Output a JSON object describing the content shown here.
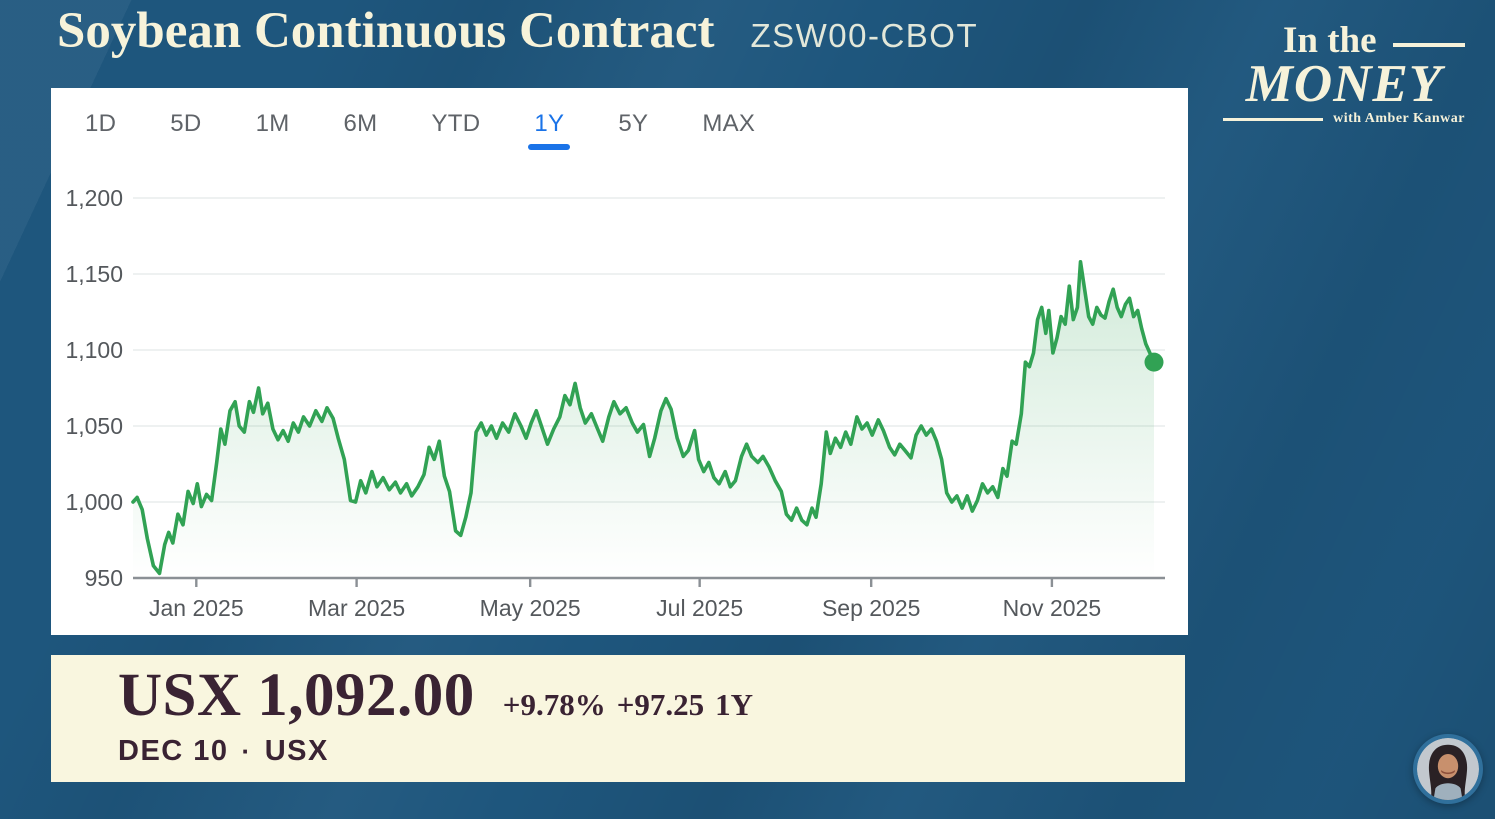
{
  "header": {
    "title": "Soybean Continuous Contract",
    "ticker": "ZSW00-CBOT"
  },
  "logo": {
    "line1": "In the",
    "line2": "MONEY",
    "line3": "with Amber Kanwar"
  },
  "chart": {
    "range_tabs": [
      {
        "label": "1D",
        "active": false
      },
      {
        "label": "5D",
        "active": false
      },
      {
        "label": "1M",
        "active": false
      },
      {
        "label": "6M",
        "active": false
      },
      {
        "label": "YTD",
        "active": false
      },
      {
        "label": "1Y",
        "active": true
      },
      {
        "label": "5Y",
        "active": false
      },
      {
        "label": "MAX",
        "active": false
      }
    ],
    "active_tab_color": "#1a73e8",
    "inactive_tab_color": "#5f6368"
  },
  "quote": {
    "price": "USX 1,092.00",
    "change_percent": "+9.78%",
    "change_amount": "+97.25",
    "change_period": "1Y",
    "date": "DEC 10",
    "separator": "·",
    "exchange": "USX",
    "panel_color": "#f9f6df",
    "text_color": "#3a2333"
  },
  "chart_data": {
    "type": "area",
    "title": "Soybean Continuous Contract",
    "symbol": "ZSW00-CBOT",
    "selected_range": "1Y",
    "last_price": 1092.0,
    "change_percent": 9.78,
    "change_amount": 97.25,
    "line_color": "#31a254",
    "grid": true,
    "ylim": [
      945,
      1210
    ],
    "yticks": [
      {
        "value": 1200,
        "label": "1,200"
      },
      {
        "value": 1150,
        "label": "1,150"
      },
      {
        "value": 1100,
        "label": "1,100"
      },
      {
        "value": 1050,
        "label": "1,050"
      },
      {
        "value": 1000,
        "label": "1,000"
      },
      {
        "value": 950,
        "label": "950"
      }
    ],
    "xticks": [
      {
        "pos": 0.062,
        "label": "Jan 2025"
      },
      {
        "pos": 0.219,
        "label": "Mar 2025"
      },
      {
        "pos": 0.389,
        "label": "May 2025"
      },
      {
        "pos": 0.555,
        "label": "Jul 2025"
      },
      {
        "pos": 0.723,
        "label": "Sep 2025"
      },
      {
        "pos": 0.9,
        "label": "Nov 2025"
      }
    ],
    "series": [
      {
        "name": "ZSW00-CBOT 1Y price (USX)",
        "points": [
          [
            0.0,
            1000
          ],
          [
            0.004,
            1003
          ],
          [
            0.009,
            995
          ],
          [
            0.014,
            976
          ],
          [
            0.02,
            958
          ],
          [
            0.026,
            953
          ],
          [
            0.031,
            972
          ],
          [
            0.035,
            980
          ],
          [
            0.039,
            973
          ],
          [
            0.044,
            992
          ],
          [
            0.049,
            985
          ],
          [
            0.054,
            1007
          ],
          [
            0.059,
            999
          ],
          [
            0.063,
            1012
          ],
          [
            0.067,
            997
          ],
          [
            0.072,
            1005
          ],
          [
            0.077,
            1001
          ],
          [
            0.082,
            1026
          ],
          [
            0.086,
            1048
          ],
          [
            0.09,
            1038
          ],
          [
            0.095,
            1060
          ],
          [
            0.1,
            1066
          ],
          [
            0.104,
            1050
          ],
          [
            0.109,
            1046
          ],
          [
            0.114,
            1066
          ],
          [
            0.118,
            1059
          ],
          [
            0.123,
            1075
          ],
          [
            0.127,
            1058
          ],
          [
            0.132,
            1065
          ],
          [
            0.137,
            1048
          ],
          [
            0.142,
            1041
          ],
          [
            0.147,
            1047
          ],
          [
            0.152,
            1040
          ],
          [
            0.157,
            1052
          ],
          [
            0.162,
            1046
          ],
          [
            0.167,
            1056
          ],
          [
            0.173,
            1050
          ],
          [
            0.179,
            1060
          ],
          [
            0.185,
            1053
          ],
          [
            0.19,
            1062
          ],
          [
            0.196,
            1055
          ],
          [
            0.201,
            1042
          ],
          [
            0.207,
            1028
          ],
          [
            0.213,
            1001
          ],
          [
            0.218,
            1000
          ],
          [
            0.223,
            1014
          ],
          [
            0.228,
            1006
          ],
          [
            0.234,
            1020
          ],
          [
            0.239,
            1010
          ],
          [
            0.245,
            1016
          ],
          [
            0.251,
            1008
          ],
          [
            0.257,
            1013
          ],
          [
            0.262,
            1006
          ],
          [
            0.268,
            1012
          ],
          [
            0.273,
            1004
          ],
          [
            0.279,
            1010
          ],
          [
            0.285,
            1018
          ],
          [
            0.29,
            1036
          ],
          [
            0.295,
            1028
          ],
          [
            0.3,
            1040
          ],
          [
            0.305,
            1017
          ],
          [
            0.31,
            1007
          ],
          [
            0.316,
            981
          ],
          [
            0.321,
            978
          ],
          [
            0.326,
            990
          ],
          [
            0.331,
            1006
          ],
          [
            0.336,
            1046
          ],
          [
            0.341,
            1052
          ],
          [
            0.346,
            1044
          ],
          [
            0.351,
            1050
          ],
          [
            0.356,
            1042
          ],
          [
            0.362,
            1052
          ],
          [
            0.368,
            1046
          ],
          [
            0.374,
            1058
          ],
          [
            0.38,
            1050
          ],
          [
            0.385,
            1042
          ],
          [
            0.39,
            1052
          ],
          [
            0.395,
            1060
          ],
          [
            0.4,
            1050
          ],
          [
            0.406,
            1038
          ],
          [
            0.412,
            1048
          ],
          [
            0.418,
            1056
          ],
          [
            0.423,
            1070
          ],
          [
            0.428,
            1064
          ],
          [
            0.433,
            1078
          ],
          [
            0.438,
            1062
          ],
          [
            0.443,
            1052
          ],
          [
            0.449,
            1058
          ],
          [
            0.455,
            1048
          ],
          [
            0.46,
            1040
          ],
          [
            0.466,
            1056
          ],
          [
            0.471,
            1066
          ],
          [
            0.477,
            1058
          ],
          [
            0.483,
            1062
          ],
          [
            0.489,
            1052
          ],
          [
            0.494,
            1046
          ],
          [
            0.5,
            1051
          ],
          [
            0.506,
            1030
          ],
          [
            0.511,
            1042
          ],
          [
            0.517,
            1060
          ],
          [
            0.522,
            1068
          ],
          [
            0.527,
            1061
          ],
          [
            0.533,
            1042
          ],
          [
            0.539,
            1030
          ],
          [
            0.544,
            1034
          ],
          [
            0.55,
            1047
          ],
          [
            0.554,
            1028
          ],
          [
            0.559,
            1020
          ],
          [
            0.564,
            1026
          ],
          [
            0.569,
            1016
          ],
          [
            0.574,
            1012
          ],
          [
            0.58,
            1020
          ],
          [
            0.585,
            1010
          ],
          [
            0.59,
            1014
          ],
          [
            0.596,
            1030
          ],
          [
            0.601,
            1038
          ],
          [
            0.606,
            1030
          ],
          [
            0.612,
            1026
          ],
          [
            0.617,
            1030
          ],
          [
            0.623,
            1023
          ],
          [
            0.629,
            1014
          ],
          [
            0.635,
            1007
          ],
          [
            0.64,
            992
          ],
          [
            0.645,
            988
          ],
          [
            0.65,
            996
          ],
          [
            0.655,
            988
          ],
          [
            0.66,
            985
          ],
          [
            0.665,
            996
          ],
          [
            0.669,
            990
          ],
          [
            0.674,
            1012
          ],
          [
            0.679,
            1046
          ],
          [
            0.683,
            1032
          ],
          [
            0.688,
            1042
          ],
          [
            0.693,
            1036
          ],
          [
            0.698,
            1046
          ],
          [
            0.703,
            1038
          ],
          [
            0.709,
            1056
          ],
          [
            0.714,
            1048
          ],
          [
            0.719,
            1052
          ],
          [
            0.724,
            1044
          ],
          [
            0.73,
            1054
          ],
          [
            0.735,
            1047
          ],
          [
            0.741,
            1036
          ],
          [
            0.746,
            1031
          ],
          [
            0.751,
            1038
          ],
          [
            0.756,
            1034
          ],
          [
            0.762,
            1029
          ],
          [
            0.767,
            1044
          ],
          [
            0.772,
            1050
          ],
          [
            0.777,
            1044
          ],
          [
            0.782,
            1048
          ],
          [
            0.787,
            1040
          ],
          [
            0.792,
            1028
          ],
          [
            0.797,
            1006
          ],
          [
            0.802,
            1000
          ],
          [
            0.807,
            1004
          ],
          [
            0.812,
            996
          ],
          [
            0.817,
            1004
          ],
          [
            0.822,
            994
          ],
          [
            0.827,
            1001
          ],
          [
            0.832,
            1012
          ],
          [
            0.837,
            1006
          ],
          [
            0.842,
            1010
          ],
          [
            0.847,
            1003
          ],
          [
            0.852,
            1022
          ],
          [
            0.856,
            1017
          ],
          [
            0.861,
            1040
          ],
          [
            0.865,
            1038
          ],
          [
            0.87,
            1058
          ],
          [
            0.874,
            1092
          ],
          [
            0.878,
            1089
          ],
          [
            0.882,
            1098
          ],
          [
            0.886,
            1120
          ],
          [
            0.89,
            1128
          ],
          [
            0.894,
            1111
          ],
          [
            0.897,
            1126
          ],
          [
            0.901,
            1098
          ],
          [
            0.905,
            1108
          ],
          [
            0.909,
            1122
          ],
          [
            0.913,
            1117
          ],
          [
            0.917,
            1142
          ],
          [
            0.921,
            1120
          ],
          [
            0.925,
            1128
          ],
          [
            0.928,
            1158
          ],
          [
            0.932,
            1140
          ],
          [
            0.936,
            1122
          ],
          [
            0.94,
            1117
          ],
          [
            0.944,
            1128
          ],
          [
            0.948,
            1123
          ],
          [
            0.952,
            1121
          ],
          [
            0.956,
            1132
          ],
          [
            0.96,
            1140
          ],
          [
            0.964,
            1128
          ],
          [
            0.968,
            1122
          ],
          [
            0.972,
            1130
          ],
          [
            0.976,
            1134
          ],
          [
            0.98,
            1122
          ],
          [
            0.984,
            1126
          ],
          [
            0.988,
            1114
          ],
          [
            0.992,
            1104
          ],
          [
            0.996,
            1098
          ],
          [
            1.0,
            1092
          ]
        ]
      }
    ]
  }
}
